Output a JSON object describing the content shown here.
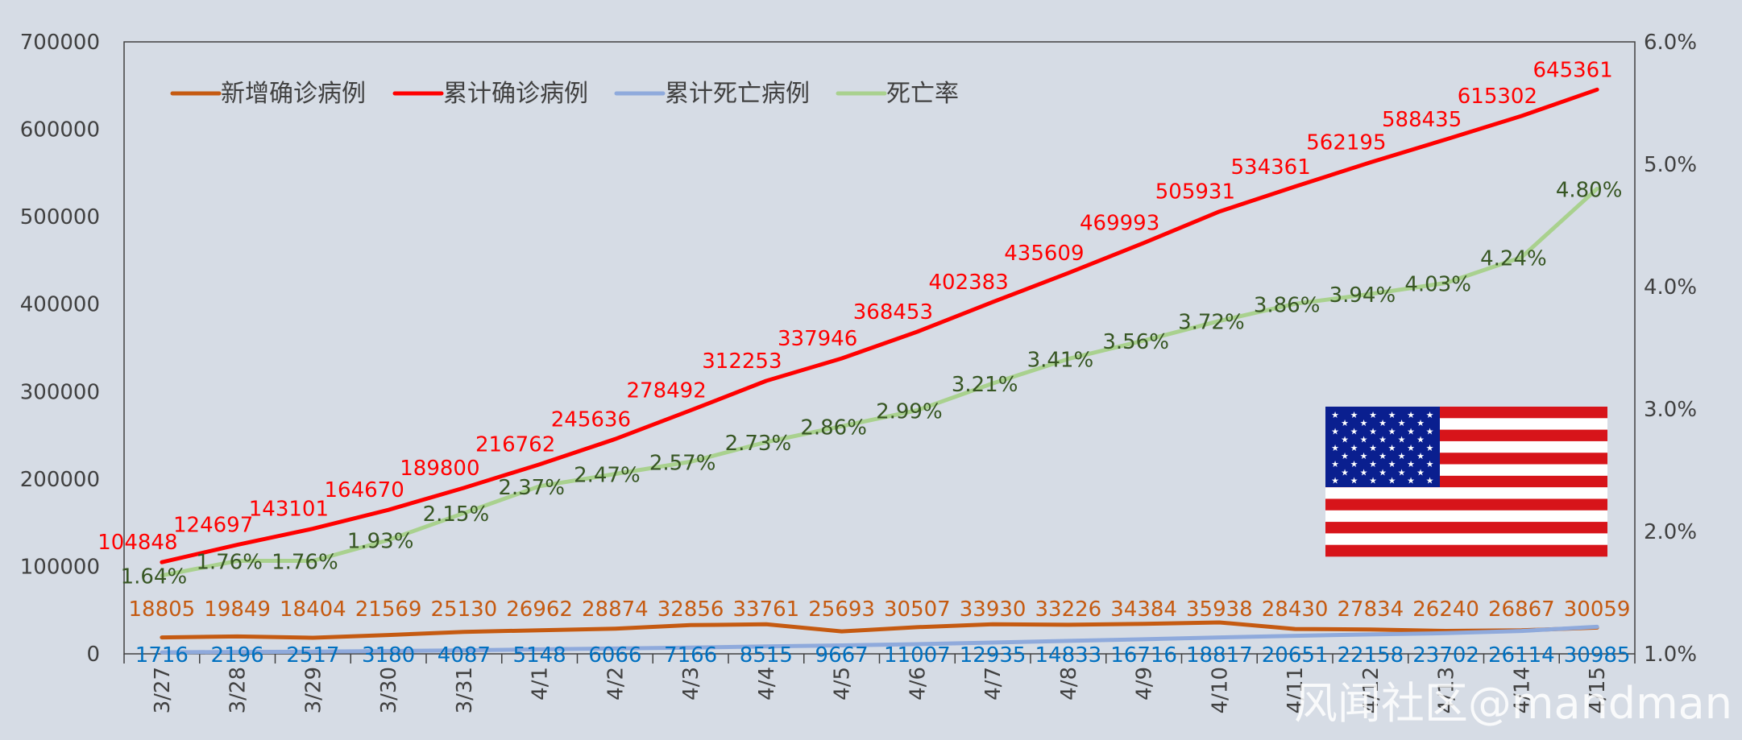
{
  "chart_data": {
    "type": "line",
    "categories": [
      "3/27",
      "3/28",
      "3/29",
      "3/30",
      "3/31",
      "4/1",
      "4/2",
      "4/3",
      "4/4",
      "4/5",
      "4/6",
      "4/7",
      "4/8",
      "4/9",
      "4/10",
      "4/11",
      "4/12",
      "4/13",
      "4/14",
      "4/15"
    ],
    "series": [
      {
        "name": "新增确诊病例",
        "axis": "left",
        "color": "#c55a11",
        "label_color": "#c55a11",
        "values": [
          18805,
          19849,
          18404,
          21569,
          25130,
          26962,
          28874,
          32856,
          33761,
          25693,
          30507,
          33930,
          33226,
          34384,
          35938,
          28430,
          27834,
          26240,
          26867,
          30059
        ]
      },
      {
        "name": "累计确诊病例",
        "axis": "left",
        "color": "#ff0000",
        "label_color": "#ff0000",
        "values": [
          104848,
          124697,
          143101,
          164670,
          189800,
          216762,
          245636,
          278492,
          312253,
          337946,
          368453,
          402383,
          435609,
          469993,
          505931,
          534361,
          562195,
          588435,
          615302,
          645361
        ]
      },
      {
        "name": "累计死亡病例",
        "axis": "left",
        "color": "#8faadc",
        "label_color": "#0070c0",
        "values": [
          1716,
          2196,
          2517,
          3180,
          4087,
          5148,
          6066,
          7166,
          8515,
          9667,
          11007,
          12935,
          14833,
          16716,
          18817,
          20651,
          22158,
          23702,
          26114,
          30985
        ]
      },
      {
        "name": "死亡率",
        "axis": "right",
        "color": "#a9d18e",
        "label_color": "#375623",
        "values": [
          1.64,
          1.76,
          1.76,
          1.93,
          2.15,
          2.37,
          2.47,
          2.57,
          2.73,
          2.86,
          2.99,
          3.21,
          3.41,
          3.56,
          3.72,
          3.86,
          3.94,
          4.03,
          4.24,
          4.8
        ],
        "labels": [
          "1.64%",
          "1.76%",
          "1.76%",
          "1.93%",
          "2.15%",
          "2.37%",
          "2.47%",
          "2.57%",
          "2.73%",
          "2.86%",
          "2.99%",
          "3.21%",
          "3.41%",
          "3.56%",
          "3.72%",
          "3.86%",
          "3.94%",
          "4.03%",
          "4.24%",
          "4.80%"
        ]
      }
    ],
    "y_left": {
      "min": 0,
      "max": 700000,
      "ticks": [
        "0",
        "100000",
        "200000",
        "300000",
        "400000",
        "500000",
        "600000",
        "700000"
      ]
    },
    "y_right": {
      "min": 1.0,
      "max": 6.0,
      "ticks": [
        "1.0%",
        "2.0%",
        "3.0%",
        "4.0%",
        "5.0%",
        "6.0%"
      ]
    },
    "legend_position": "top-left",
    "grid": false
  },
  "watermark": "风闻社区@mandman",
  "flag": "us-flag"
}
